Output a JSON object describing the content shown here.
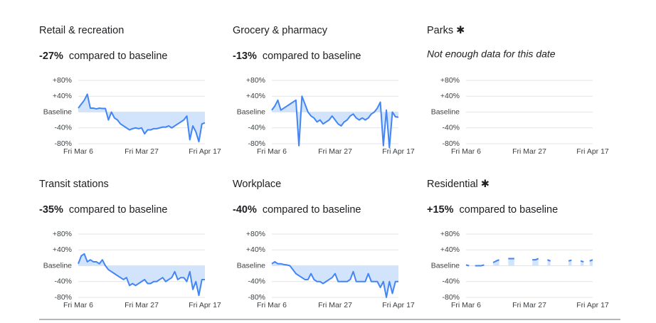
{
  "chart_data": [
    {
      "type": "line",
      "title": "Retail & recreation",
      "headline": "-27%",
      "subtitle": "compared to baseline",
      "categories": [
        "Fri Mar 6",
        null,
        null,
        null,
        null,
        null,
        null,
        null,
        null,
        null,
        null,
        null,
        null,
        null,
        null,
        null,
        null,
        null,
        null,
        null,
        null,
        "Fri Mar 27",
        null,
        null,
        null,
        null,
        null,
        null,
        null,
        null,
        null,
        null,
        null,
        null,
        null,
        null,
        null,
        null,
        null,
        null,
        null,
        null,
        "Fri Apr 17"
      ],
      "values": [
        10,
        20,
        30,
        45,
        10,
        10,
        8,
        10,
        9,
        9,
        -20,
        0,
        -15,
        -20,
        -30,
        -35,
        -40,
        -45,
        -42,
        -40,
        -42,
        -40,
        -55,
        -45,
        -45,
        -42,
        -42,
        -40,
        -38,
        -38,
        -35,
        -40,
        -35,
        -30,
        -25,
        -20,
        -10,
        -70,
        -35,
        -50,
        -75,
        -30,
        -27
      ],
      "color": "#4285f4",
      "fill": "#d2e3fc",
      "ylim": [
        -80,
        80
      ],
      "yticks": [
        {
          "value": 80,
          "label": "+80%"
        },
        {
          "value": 40,
          "label": "+40%"
        },
        {
          "value": 0,
          "label": "Baseline"
        },
        {
          "value": -40,
          "label": "-40%"
        },
        {
          "value": -80,
          "label": "-80%"
        }
      ],
      "grid": true
    },
    {
      "type": "line",
      "title": "Grocery & pharmacy",
      "headline": "-13%",
      "subtitle": "compared to baseline",
      "categories": [
        "Fri Mar 6",
        null,
        null,
        null,
        null,
        null,
        null,
        null,
        null,
        null,
        null,
        null,
        null,
        null,
        null,
        null,
        null,
        null,
        null,
        null,
        null,
        "Fri Mar 27",
        null,
        null,
        null,
        null,
        null,
        null,
        null,
        null,
        null,
        null,
        null,
        null,
        null,
        null,
        null,
        null,
        null,
        null,
        null,
        null,
        "Fri Apr 17"
      ],
      "values": [
        5,
        15,
        30,
        5,
        10,
        15,
        20,
        25,
        30,
        -85,
        40,
        20,
        0,
        -10,
        -15,
        -25,
        -20,
        -30,
        -25,
        -20,
        -10,
        -20,
        -30,
        -35,
        -25,
        -20,
        -10,
        -5,
        -15,
        -20,
        -15,
        -20,
        -15,
        -5,
        0,
        10,
        25,
        -85,
        5,
        -90,
        0,
        -12,
        -13
      ],
      "color": "#4285f4",
      "fill": "#d2e3fc",
      "ylim": [
        -80,
        80
      ],
      "yticks": [
        {
          "value": 80,
          "label": "+80%"
        },
        {
          "value": 40,
          "label": "+40%"
        },
        {
          "value": 0,
          "label": "Baseline"
        },
        {
          "value": -40,
          "label": "-40%"
        },
        {
          "value": -80,
          "label": "-80%"
        }
      ],
      "grid": true
    },
    {
      "type": "line",
      "title": "Parks ✱",
      "note": "Not enough data for this date",
      "categories": [
        "Fri Mar 6",
        null,
        null,
        null,
        null,
        null,
        null,
        null,
        null,
        null,
        null,
        null,
        null,
        null,
        null,
        null,
        null,
        null,
        null,
        null,
        null,
        "Fri Mar 27",
        null,
        null,
        null,
        null,
        null,
        null,
        null,
        null,
        null,
        null,
        null,
        null,
        null,
        null,
        null,
        null,
        null,
        null,
        null,
        null,
        "Fri Apr 17"
      ],
      "color": "#4285f4",
      "fill": "#d2e3fc",
      "ylim": [
        -80,
        80
      ],
      "yticks": [
        {
          "value": 80,
          "label": "+80%"
        },
        {
          "value": 40,
          "label": "+40%"
        },
        {
          "value": 0,
          "label": "Baseline"
        },
        {
          "value": -40,
          "label": "-40%"
        },
        {
          "value": -80,
          "label": "-80%"
        }
      ],
      "grid": true
    },
    {
      "type": "line",
      "title": "Transit stations",
      "headline": "-35%",
      "subtitle": "compared to baseline",
      "categories": [
        "Fri Mar 6",
        null,
        null,
        null,
        null,
        null,
        null,
        null,
        null,
        null,
        null,
        null,
        null,
        null,
        null,
        null,
        null,
        null,
        null,
        null,
        null,
        "Fri Mar 27",
        null,
        null,
        null,
        null,
        null,
        null,
        null,
        null,
        null,
        null,
        null,
        null,
        null,
        null,
        null,
        null,
        null,
        null,
        null,
        null,
        "Fri Apr 17"
      ],
      "values": [
        5,
        25,
        30,
        10,
        15,
        10,
        10,
        5,
        15,
        0,
        -10,
        -15,
        -20,
        -25,
        -30,
        -35,
        -30,
        -50,
        -45,
        -50,
        -45,
        -40,
        -35,
        -45,
        -45,
        -40,
        -40,
        -35,
        -30,
        -40,
        -35,
        -30,
        -15,
        -35,
        -30,
        -30,
        -40,
        -15,
        -60,
        -40,
        -75,
        -35,
        -35
      ],
      "color": "#4285f4",
      "fill": "#d2e3fc",
      "ylim": [
        -80,
        80
      ],
      "yticks": [
        {
          "value": 80,
          "label": "+80%"
        },
        {
          "value": 40,
          "label": "+40%"
        },
        {
          "value": 0,
          "label": "Baseline"
        },
        {
          "value": -40,
          "label": "-40%"
        },
        {
          "value": -80,
          "label": "-80%"
        }
      ],
      "grid": true
    },
    {
      "type": "line",
      "title": "Workplace",
      "headline": "-40%",
      "subtitle": "compared to baseline",
      "categories": [
        "Fri Mar 6",
        null,
        null,
        null,
        null,
        null,
        null,
        null,
        null,
        null,
        null,
        null,
        null,
        null,
        null,
        null,
        null,
        null,
        null,
        null,
        null,
        "Fri Mar 27",
        null,
        null,
        null,
        null,
        null,
        null,
        null,
        null,
        null,
        null,
        null,
        null,
        null,
        null,
        null,
        null,
        null,
        null,
        null,
        null,
        "Fri Apr 17"
      ],
      "values": [
        5,
        10,
        5,
        5,
        3,
        2,
        0,
        -10,
        -20,
        -25,
        -30,
        -35,
        -35,
        -20,
        -35,
        -40,
        -40,
        -45,
        -40,
        -35,
        -30,
        -20,
        -40,
        -40,
        -40,
        -40,
        -35,
        -15,
        -40,
        -40,
        -40,
        -40,
        -20,
        -40,
        -40,
        -40,
        -55,
        -40,
        -80,
        -40,
        -70,
        -40,
        -40
      ],
      "color": "#4285f4",
      "fill": "#d2e3fc",
      "ylim": [
        -80,
        80
      ],
      "yticks": [
        {
          "value": 80,
          "label": "+80%"
        },
        {
          "value": 40,
          "label": "+40%"
        },
        {
          "value": 0,
          "label": "Baseline"
        },
        {
          "value": -40,
          "label": "-40%"
        },
        {
          "value": -80,
          "label": "-80%"
        }
      ],
      "grid": true
    },
    {
      "type": "line",
      "title": "Residential ✱",
      "headline": "+15%",
      "subtitle": "compared to baseline",
      "categories": [
        "Fri Mar 6",
        null,
        null,
        null,
        null,
        null,
        null,
        null,
        null,
        null,
        null,
        null,
        null,
        null,
        null,
        null,
        null,
        null,
        null,
        null,
        null,
        "Fri Mar 27",
        null,
        null,
        null,
        null,
        null,
        null,
        null,
        null,
        null,
        null,
        null,
        null,
        null,
        null,
        null,
        null,
        null,
        null,
        null,
        null,
        "Fri Apr 17"
      ],
      "values": [
        2,
        0,
        null,
        0,
        0,
        0,
        2,
        null,
        null,
        8,
        12,
        15,
        null,
        null,
        18,
        18,
        18,
        null,
        null,
        18,
        null,
        null,
        15,
        15,
        18,
        null,
        null,
        15,
        12,
        null,
        null,
        12,
        null,
        null,
        12,
        14,
        null,
        null,
        12,
        10,
        null,
        12,
        15
      ],
      "color": "#4285f4",
      "fill": "#d2e3fc",
      "ylim": [
        -80,
        80
      ],
      "yticks": [
        {
          "value": 80,
          "label": "+80%"
        },
        {
          "value": 40,
          "label": "+40%"
        },
        {
          "value": 0,
          "label": "Baseline"
        },
        {
          "value": -40,
          "label": "-40%"
        },
        {
          "value": -80,
          "label": "-80%"
        }
      ],
      "grid": true
    }
  ]
}
